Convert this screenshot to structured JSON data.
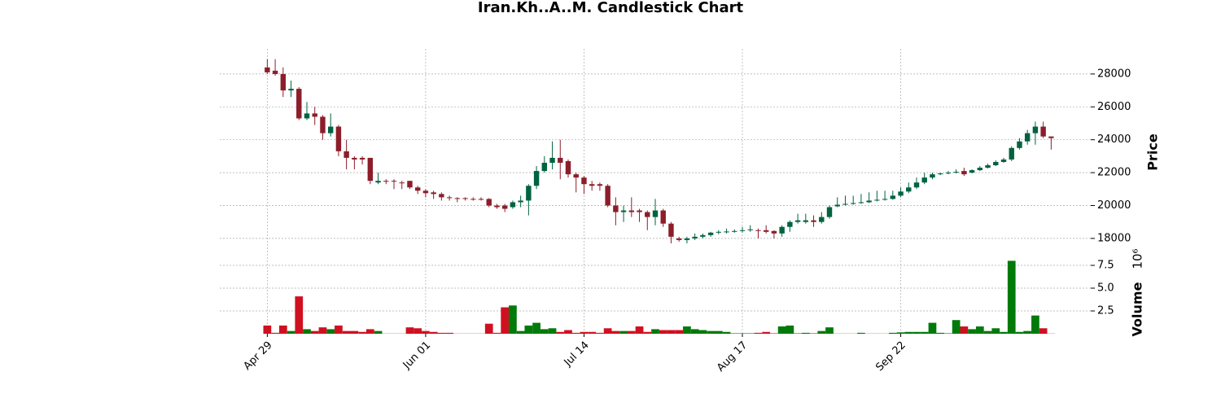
{
  "chart_data": {
    "type": "candlestick",
    "title": "Iran.Kh..A..M. Candlestick Chart",
    "y_label": "Price",
    "y2_label": "Volume",
    "y2_multiplier": "10⁶",
    "open": [
      28400,
      28200,
      28000,
      27000,
      27100,
      25300,
      25600,
      25400,
      24400,
      24800,
      23300,
      22900,
      22900,
      22900,
      21400,
      21500,
      21500,
      21400,
      21500,
      21100,
      20900,
      20800,
      20700,
      20500,
      20450,
      20450,
      20400,
      20400,
      20400,
      20000,
      20000,
      19900,
      20200,
      20300,
      21200,
      22100,
      22600,
      22900,
      22700,
      21900,
      21700,
      21300,
      21300,
      21200,
      20000,
      19600,
      19700,
      19700,
      19600,
      19300,
      19700,
      18900,
      18000,
      17900,
      18000,
      18100,
      18200,
      18350,
      18400,
      18400,
      18450,
      18500,
      18500,
      18500,
      18450,
      18300,
      18700,
      19000,
      19000,
      19100,
      19000,
      19300,
      19950,
      20050,
      20100,
      20150,
      20200,
      20300,
      20350,
      20400,
      20600,
      20850,
      21100,
      21400,
      21700,
      21900,
      21950,
      22000,
      22100,
      22000,
      22150,
      22300,
      22450,
      22650,
      22800,
      23500,
      23900,
      24400,
      24800,
      24200
    ],
    "high": [
      28900,
      28900,
      28400,
      27600,
      27200,
      26300,
      26000,
      25500,
      25600,
      24900,
      24000,
      23000,
      23000,
      22900,
      22000,
      21600,
      21600,
      21500,
      21500,
      21200,
      21000,
      20900,
      20800,
      20600,
      20500,
      20500,
      20500,
      20500,
      20450,
      20100,
      20100,
      20300,
      20600,
      21300,
      22400,
      23000,
      23900,
      24000,
      22800,
      22000,
      21800,
      21500,
      21400,
      21300,
      20500,
      20000,
      20500,
      19800,
      19700,
      20400,
      19800,
      19000,
      18100,
      18100,
      18300,
      18300,
      18400,
      18500,
      18600,
      18550,
      18700,
      18800,
      18600,
      18800,
      18500,
      18800,
      19100,
      19500,
      19500,
      19400,
      19600,
      20000,
      20500,
      20600,
      20600,
      20700,
      20800,
      20900,
      20900,
      20900,
      21100,
      21400,
      21700,
      22000,
      22000,
      22000,
      22100,
      22200,
      22300,
      22200,
      22400,
      22550,
      22750,
      22900,
      23600,
      24100,
      24600,
      25100,
      25100,
      24200
    ],
    "low": [
      28000,
      27900,
      26600,
      26600,
      25200,
      25200,
      24900,
      24000,
      24200,
      23000,
      22200,
      22200,
      22500,
      21300,
      21300,
      21300,
      21000,
      21000,
      21000,
      20700,
      20500,
      20400,
      20300,
      20300,
      20200,
      20300,
      20300,
      20300,
      19900,
      19800,
      19600,
      19800,
      19900,
      19400,
      21000,
      22000,
      22200,
      21600,
      21700,
      20800,
      20700,
      20900,
      20900,
      19900,
      18800,
      19000,
      19300,
      19000,
      18500,
      18800,
      18700,
      17700,
      17800,
      17700,
      17900,
      18000,
      18100,
      18250,
      18300,
      18350,
      18350,
      18400,
      18000,
      18300,
      18000,
      18100,
      18400,
      18900,
      18900,
      18700,
      18900,
      19200,
      19900,
      20000,
      20050,
      20100,
      20150,
      20250,
      20300,
      20350,
      20500,
      20750,
      21000,
      21300,
      21600,
      21850,
      21900,
      21950,
      21800,
      21950,
      22100,
      22250,
      22400,
      22600,
      22700,
      23400,
      23700,
      23700,
      24100,
      23400
    ],
    "close": [
      28100,
      28000,
      27000,
      27100,
      25300,
      25600,
      25400,
      24400,
      24800,
      23300,
      22900,
      22800,
      22800,
      21500,
      21500,
      21450,
      21450,
      21350,
      21100,
      20900,
      20750,
      20700,
      20500,
      20450,
      20400,
      20400,
      20380,
      20380,
      20000,
      19900,
      19800,
      20200,
      20300,
      21200,
      22100,
      22600,
      22900,
      22600,
      21900,
      21700,
      21300,
      21200,
      21200,
      20000,
      19600,
      19700,
      19600,
      19600,
      19300,
      19700,
      18900,
      18100,
      17900,
      18000,
      18100,
      18200,
      18350,
      18400,
      18420,
      18450,
      18500,
      18550,
      18450,
      18400,
      18300,
      18700,
      19000,
      19100,
      19100,
      19000,
      19300,
      19900,
      20050,
      20100,
      20150,
      20200,
      20300,
      20350,
      20400,
      20600,
      20850,
      21100,
      21400,
      21700,
      21900,
      21950,
      22000,
      22050,
      21900,
      22150,
      22300,
      22450,
      22650,
      22800,
      23500,
      23900,
      24400,
      24800,
      24200,
      24100
    ],
    "volume": [
      0.9,
      0.1,
      0.9,
      0.3,
      4.1,
      0.5,
      0.3,
      0.7,
      0.5,
      0.9,
      0.3,
      0.3,
      0.2,
      0.5,
      0.3,
      0.02,
      0.02,
      0.02,
      0.7,
      0.6,
      0.3,
      0.2,
      0.1,
      0.1,
      0.02,
      0.02,
      0.02,
      0.02,
      1.1,
      0.1,
      2.9,
      3.1,
      0.3,
      0.9,
      1.2,
      0.5,
      0.6,
      0.2,
      0.4,
      0.1,
      0.2,
      0.2,
      0.1,
      0.6,
      0.3,
      0.3,
      0.3,
      0.8,
      0.2,
      0.5,
      0.4,
      0.4,
      0.4,
      0.8,
      0.5,
      0.4,
      0.3,
      0.3,
      0.2,
      0.05,
      0.05,
      0.05,
      0.1,
      0.2,
      0.05,
      0.8,
      0.9,
      0.05,
      0.1,
      0.05,
      0.3,
      0.7,
      0.02,
      0.02,
      0.02,
      0.1,
      0.02,
      0.02,
      0.02,
      0.1,
      0.15,
      0.2,
      0.2,
      0.2,
      1.2,
      0.1,
      0.05,
      1.5,
      0.8,
      0.5,
      0.8,
      0.3,
      0.6,
      0.2,
      8.0,
      0.2,
      0.3,
      2.0,
      0.6,
      0.02
    ],
    "up_color": "#006340",
    "down_color": "#8b1e2a",
    "volume_up_color": "#007a0a",
    "volume_down_color": "#d01020",
    "xlim": [
      -6,
      104
    ],
    "xticks": [
      {
        "value": 0,
        "label": "Apr 29"
      },
      {
        "value": 20,
        "label": "Jun 01"
      },
      {
        "value": 40,
        "label": "Jul 14"
      },
      {
        "value": 60,
        "label": "Aug 17"
      },
      {
        "value": 80,
        "label": "Sep 22"
      }
    ],
    "ylim": [
      17400,
      29530
    ],
    "yticks": [
      18000,
      20000,
      22000,
      24000,
      26000,
      28000
    ],
    "y2lim": [
      0,
      8.93
    ],
    "y2ticks": [
      {
        "value": 2.5,
        "label": "2.5"
      },
      {
        "value": 5.0,
        "label": "5.0"
      },
      {
        "value": 7.5,
        "label": "7.5"
      }
    ],
    "grid": true
  }
}
